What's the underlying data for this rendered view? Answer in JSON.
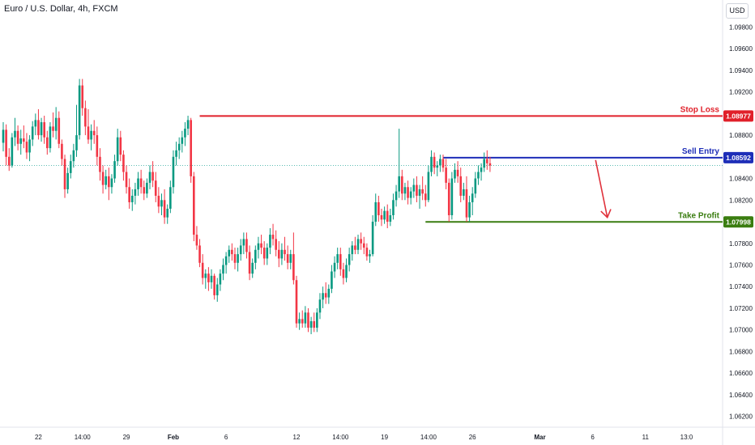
{
  "header": {
    "title": "Euro / U.S. Dollar, 4h, FXCM",
    "currency_button": "USD"
  },
  "chart_data": {
    "type": "candlestick",
    "ylim": [
      1.061,
      1.1005
    ],
    "y_ticks": [
      "1.06200",
      "1.06400",
      "1.06600",
      "1.06800",
      "1.07000",
      "1.07200",
      "1.07400",
      "1.07600",
      "1.07800",
      "1.08000",
      "1.08200",
      "1.08400",
      "1.08600",
      "1.08800",
      "1.09000",
      "1.09200",
      "1.09400",
      "1.09600",
      "1.09800"
    ],
    "x_ticks": [
      {
        "label": "22",
        "bar": 12
      },
      {
        "label": "14:00",
        "bar": 27
      },
      {
        "label": "29",
        "bar": 42
      },
      {
        "label": "Feb",
        "bar": 58,
        "bold": true
      },
      {
        "label": "6",
        "bar": 76
      },
      {
        "label": "12",
        "bar": 100
      },
      {
        "label": "14:00",
        "bar": 115
      },
      {
        "label": "19",
        "bar": 130
      },
      {
        "label": "14:00",
        "bar": 145
      },
      {
        "label": "26",
        "bar": 160
      },
      {
        "label": "Mar",
        "bar": 183,
        "bold": true
      },
      {
        "label": "6",
        "bar": 201
      },
      {
        "label": "11",
        "bar": 219
      },
      {
        "label": "13:0",
        "bar": 233
      }
    ],
    "current_price": 1.0852,
    "levels": [
      {
        "name": "Stop Loss",
        "value": 1.08977,
        "label": "1.08977",
        "color": "#e0202a",
        "start_bar": 67
      },
      {
        "name": "Sell Entry",
        "value": 1.08592,
        "label": "1.08592",
        "color": "#1e2eb8",
        "start_bar": 150
      },
      {
        "name": "Take Profit",
        "value": 1.07998,
        "label": "1.07998",
        "color": "#3a7d10",
        "start_bar": 144
      }
    ],
    "arrow": {
      "from_bar": 202,
      "from_value": 1.0857,
      "to_bar": 206,
      "to_value": 1.0804,
      "color": "#e0323c"
    },
    "up_color": "#089981",
    "down_color": "#f23645",
    "candles": [
      [
        1.0873,
        1.0892,
        1.0865,
        1.0885
      ],
      [
        1.0885,
        1.089,
        1.0852,
        1.086
      ],
      [
        1.086,
        1.0868,
        1.0847,
        1.0852
      ],
      [
        1.0852,
        1.0882,
        1.085,
        1.0878
      ],
      [
        1.0878,
        1.0896,
        1.087,
        1.0884
      ],
      [
        1.0884,
        1.0889,
        1.0866,
        1.0872
      ],
      [
        1.0872,
        1.0885,
        1.0862,
        1.0877
      ],
      [
        1.0877,
        1.0889,
        1.0868,
        1.0874
      ],
      [
        1.0874,
        1.0882,
        1.0858,
        1.0864
      ],
      [
        1.0864,
        1.088,
        1.0856,
        1.0876
      ],
      [
        1.0876,
        1.0893,
        1.087,
        1.0888
      ],
      [
        1.0888,
        1.09,
        1.088,
        1.0894
      ],
      [
        1.0894,
        1.0904,
        1.0876,
        1.088
      ],
      [
        1.088,
        1.0896,
        1.0874,
        1.0892
      ],
      [
        1.0892,
        1.0898,
        1.0872,
        1.0878
      ],
      [
        1.0878,
        1.0884,
        1.0862,
        1.0868
      ],
      [
        1.0868,
        1.0892,
        1.0864,
        1.0888
      ],
      [
        1.0888,
        1.0901,
        1.0878,
        1.0884
      ],
      [
        1.0884,
        1.0906,
        1.0876,
        1.0896
      ],
      [
        1.0896,
        1.0902,
        1.0868,
        1.0872
      ],
      [
        1.0872,
        1.0876,
        1.0852,
        1.0858
      ],
      [
        1.0858,
        1.0862,
        1.0822,
        1.083
      ],
      [
        1.083,
        1.085,
        1.0826,
        1.0845
      ],
      [
        1.0845,
        1.0862,
        1.084,
        1.0856
      ],
      [
        1.0856,
        1.0872,
        1.085,
        1.0866
      ],
      [
        1.0866,
        1.0908,
        1.086,
        1.088
      ],
      [
        1.088,
        1.0932,
        1.0876,
        1.0926
      ],
      [
        1.0926,
        1.0932,
        1.0898,
        1.0905
      ],
      [
        1.0905,
        1.0912,
        1.088,
        1.0888
      ],
      [
        1.0888,
        1.0904,
        1.0872,
        1.0876
      ],
      [
        1.0876,
        1.089,
        1.0866,
        1.0884
      ],
      [
        1.0884,
        1.0894,
        1.0872,
        1.088
      ],
      [
        1.088,
        1.0888,
        1.0852,
        1.086
      ],
      [
        1.086,
        1.0868,
        1.0838,
        1.0846
      ],
      [
        1.0846,
        1.0852,
        1.0826,
        1.0834
      ],
      [
        1.0834,
        1.0848,
        1.083,
        1.0842
      ],
      [
        1.0842,
        1.085,
        1.082,
        1.0832
      ],
      [
        1.0832,
        1.0844,
        1.0826,
        1.084
      ],
      [
        1.084,
        1.0862,
        1.0836,
        1.0856
      ],
      [
        1.0856,
        1.0886,
        1.0852,
        1.0878
      ],
      [
        1.0878,
        1.0884,
        1.0856,
        1.0862
      ],
      [
        1.0862,
        1.0866,
        1.0838,
        1.0846
      ],
      [
        1.0846,
        1.0852,
        1.0826,
        1.0832
      ],
      [
        1.0832,
        1.084,
        1.0812,
        1.0818
      ],
      [
        1.0818,
        1.083,
        1.081,
        1.0824
      ],
      [
        1.0824,
        1.0836,
        1.0816,
        1.083
      ],
      [
        1.083,
        1.0846,
        1.0824,
        1.084
      ],
      [
        1.084,
        1.0848,
        1.0826,
        1.0832
      ],
      [
        1.0832,
        1.0838,
        1.082,
        1.0826
      ],
      [
        1.0826,
        1.084,
        1.0822,
        1.0836
      ],
      [
        1.0836,
        1.0852,
        1.083,
        1.0846
      ],
      [
        1.0846,
        1.0856,
        1.0832,
        1.0838
      ],
      [
        1.0838,
        1.0846,
        1.0818,
        1.0824
      ],
      [
        1.0824,
        1.0832,
        1.0808,
        1.0814
      ],
      [
        1.0814,
        1.0826,
        1.0806,
        1.082
      ],
      [
        1.082,
        1.083,
        1.0798,
        1.0804
      ],
      [
        1.0804,
        1.0816,
        1.0798,
        1.0812
      ],
      [
        1.0812,
        1.0838,
        1.0808,
        1.0832
      ],
      [
        1.0832,
        1.0866,
        1.0826,
        1.086
      ],
      [
        1.086,
        1.0874,
        1.0852,
        1.0866
      ],
      [
        1.0866,
        1.0878,
        1.0858,
        1.0872
      ],
      [
        1.0872,
        1.0884,
        1.0864,
        1.0878
      ],
      [
        1.0878,
        1.0892,
        1.087,
        1.0886
      ],
      [
        1.0886,
        1.0898,
        1.088,
        1.0894
      ],
      [
        1.0894,
        1.0896,
        1.0836,
        1.0842
      ],
      [
        1.0842,
        1.0846,
        1.0782,
        1.0788
      ],
      [
        1.0788,
        1.0796,
        1.0774,
        1.0778
      ],
      [
        1.0778,
        1.0784,
        1.0758,
        1.0762
      ],
      [
        1.0762,
        1.077,
        1.0742,
        1.0748
      ],
      [
        1.0748,
        1.0756,
        1.0738,
        1.0752
      ],
      [
        1.0752,
        1.0758,
        1.0736,
        1.0744
      ],
      [
        1.0744,
        1.0756,
        1.0738,
        1.075
      ],
      [
        1.075,
        1.0752,
        1.0728,
        1.0732
      ],
      [
        1.0732,
        1.0748,
        1.0726,
        1.0742
      ],
      [
        1.0742,
        1.0756,
        1.0736,
        1.0752
      ],
      [
        1.0752,
        1.0766,
        1.0746,
        1.076
      ],
      [
        1.076,
        1.0772,
        1.0752,
        1.0768
      ],
      [
        1.0768,
        1.0778,
        1.0762,
        1.0774
      ],
      [
        1.0774,
        1.078,
        1.0764,
        1.077
      ],
      [
        1.077,
        1.0776,
        1.0756,
        1.0762
      ],
      [
        1.0762,
        1.0776,
        1.0754,
        1.077
      ],
      [
        1.077,
        1.0784,
        1.0764,
        1.0778
      ],
      [
        1.0778,
        1.079,
        1.077,
        1.0784
      ],
      [
        1.0784,
        1.079,
        1.0766,
        1.0772
      ],
      [
        1.0772,
        1.0778,
        1.0746,
        1.0752
      ],
      [
        1.0752,
        1.0766,
        1.0748,
        1.0762
      ],
      [
        1.0762,
        1.0778,
        1.0756,
        1.0774
      ],
      [
        1.0774,
        1.0786,
        1.0766,
        1.078
      ],
      [
        1.078,
        1.0788,
        1.077,
        1.0776
      ],
      [
        1.0776,
        1.0782,
        1.076,
        1.0766
      ],
      [
        1.0766,
        1.078,
        1.076,
        1.0776
      ],
      [
        1.0776,
        1.0794,
        1.077,
        1.0788
      ],
      [
        1.0788,
        1.0798,
        1.0778,
        1.0784
      ],
      [
        1.0784,
        1.0792,
        1.0768,
        1.0774
      ],
      [
        1.0774,
        1.0782,
        1.0758,
        1.0766
      ],
      [
        1.0766,
        1.078,
        1.076,
        1.0774
      ],
      [
        1.0774,
        1.0786,
        1.0764,
        1.077
      ],
      [
        1.077,
        1.0778,
        1.0756,
        1.0762
      ],
      [
        1.0762,
        1.0774,
        1.0756,
        1.077
      ],
      [
        1.077,
        1.079,
        1.0742,
        1.0746
      ],
      [
        1.0746,
        1.075,
        1.0702,
        1.0706
      ],
      [
        1.0706,
        1.0716,
        1.07,
        1.071
      ],
      [
        1.071,
        1.0718,
        1.0702,
        1.0706
      ],
      [
        1.0706,
        1.0722,
        1.0702,
        1.0716
      ],
      [
        1.0716,
        1.072,
        1.0698,
        1.0702
      ],
      [
        1.0702,
        1.0712,
        1.0696,
        1.0708
      ],
      [
        1.0708,
        1.0716,
        1.0698,
        1.0702
      ],
      [
        1.0702,
        1.072,
        1.0698,
        1.0716
      ],
      [
        1.0716,
        1.0734,
        1.071,
        1.0728
      ],
      [
        1.0728,
        1.074,
        1.072,
        1.0734
      ],
      [
        1.0734,
        1.0744,
        1.0724,
        1.073
      ],
      [
        1.073,
        1.0742,
        1.0724,
        1.0738
      ],
      [
        1.0738,
        1.076,
        1.0734,
        1.0754
      ],
      [
        1.0754,
        1.0768,
        1.0748,
        1.0762
      ],
      [
        1.0762,
        1.0776,
        1.0756,
        1.077
      ],
      [
        1.077,
        1.0776,
        1.075,
        1.0756
      ],
      [
        1.0756,
        1.0762,
        1.0742,
        1.0748
      ],
      [
        1.0748,
        1.0766,
        1.0744,
        1.076
      ],
      [
        1.076,
        1.0776,
        1.0754,
        1.077
      ],
      [
        1.077,
        1.0782,
        1.0764,
        1.0778
      ],
      [
        1.0778,
        1.0786,
        1.077,
        1.0774
      ],
      [
        1.0774,
        1.0788,
        1.077,
        1.0784
      ],
      [
        1.0784,
        1.079,
        1.0774,
        1.078
      ],
      [
        1.078,
        1.0786,
        1.077,
        1.0776
      ],
      [
        1.0776,
        1.078,
        1.0764,
        1.0768
      ],
      [
        1.0768,
        1.0774,
        1.0762,
        1.077
      ],
      [
        1.077,
        1.0806,
        1.0768,
        1.08
      ],
      [
        1.08,
        1.0826,
        1.0796,
        1.0818
      ],
      [
        1.0818,
        1.0824,
        1.08,
        1.0806
      ],
      [
        1.0806,
        1.0812,
        1.0796,
        1.0802
      ],
      [
        1.0802,
        1.0814,
        1.0798,
        1.081
      ],
      [
        1.081,
        1.0816,
        1.0794,
        1.08
      ],
      [
        1.08,
        1.0812,
        1.0796,
        1.0806
      ],
      [
        1.0806,
        1.0826,
        1.0802,
        1.082
      ],
      [
        1.082,
        1.0834,
        1.0814,
        1.0828
      ],
      [
        1.0828,
        1.0886,
        1.0822,
        1.0842
      ],
      [
        1.0842,
        1.0848,
        1.082,
        1.0826
      ],
      [
        1.0826,
        1.0836,
        1.082,
        1.0832
      ],
      [
        1.0832,
        1.0838,
        1.0816,
        1.0822
      ],
      [
        1.0822,
        1.0832,
        1.0816,
        1.0828
      ],
      [
        1.0828,
        1.084,
        1.0822,
        1.0834
      ],
      [
        1.0834,
        1.0842,
        1.0818,
        1.0824
      ],
      [
        1.0824,
        1.0834,
        1.0812,
        1.083
      ],
      [
        1.083,
        1.0842,
        1.082,
        1.0826
      ],
      [
        1.0826,
        1.0834,
        1.0814,
        1.082
      ],
      [
        1.082,
        1.0852,
        1.0818,
        1.0846
      ],
      [
        1.0846,
        1.0866,
        1.0842,
        1.086
      ],
      [
        1.086,
        1.0864,
        1.0844,
        1.085
      ],
      [
        1.085,
        1.0856,
        1.0842,
        1.0852
      ],
      [
        1.0852,
        1.0862,
        1.0846,
        1.0858
      ],
      [
        1.0858,
        1.0862,
        1.0846,
        1.085
      ],
      [
        1.085,
        1.0858,
        1.083,
        1.0836
      ],
      [
        1.0836,
        1.084,
        1.08,
        1.0806
      ],
      [
        1.0806,
        1.0846,
        1.0802,
        1.084
      ],
      [
        1.084,
        1.0854,
        1.0836,
        1.0848
      ],
      [
        1.0848,
        1.0856,
        1.0836,
        1.0842
      ],
      [
        1.0842,
        1.085,
        1.0818,
        1.0824
      ],
      [
        1.0824,
        1.0836,
        1.082,
        1.083
      ],
      [
        1.083,
        1.0842,
        1.08,
        1.0804
      ],
      [
        1.0804,
        1.0824,
        1.08,
        1.0818
      ],
      [
        1.0818,
        1.0832,
        1.0806,
        1.0826
      ],
      [
        1.0826,
        1.0846,
        1.0822,
        1.084
      ],
      [
        1.084,
        1.0852,
        1.0834,
        1.0846
      ],
      [
        1.0846,
        1.0854,
        1.0838,
        1.085
      ],
      [
        1.085,
        1.0864,
        1.0846,
        1.0858
      ],
      [
        1.0858,
        1.0866,
        1.0848,
        1.0854
      ],
      [
        1.0854,
        1.086,
        1.0846,
        1.0852
      ]
    ]
  }
}
